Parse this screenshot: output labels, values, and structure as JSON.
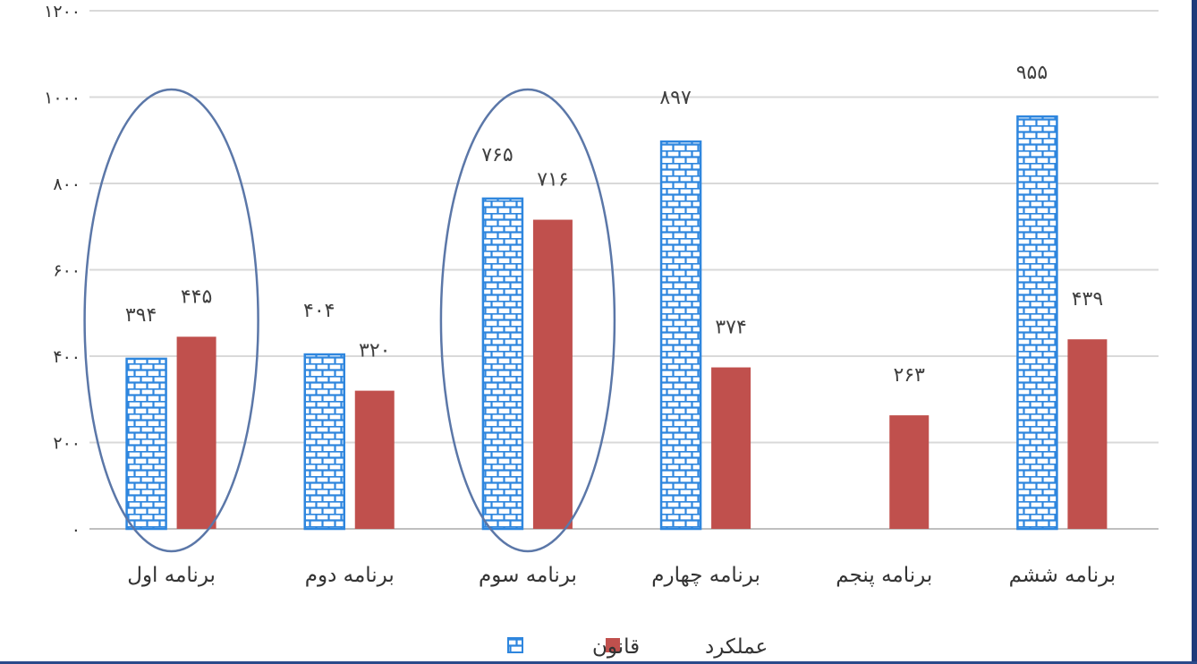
{
  "chart_data": {
    "type": "bar",
    "categories": [
      "برنامه اول",
      "برنامه دوم",
      "برنامه سوم",
      "برنامه چهارم",
      "برنامه پنجم",
      "برنامه ششم"
    ],
    "series": [
      {
        "name": "قانون",
        "values": [
          394,
          404,
          765,
          897,
          null,
          955
        ],
        "value_labels": [
          "۳۹۴",
          "۴۰۴",
          "۷۶۵",
          "۸۹۷",
          "",
          "۹۵۵"
        ],
        "color": "#2e86de",
        "pattern": "brick"
      },
      {
        "name": "عملکرد",
        "values": [
          445,
          320,
          716,
          374,
          263,
          439
        ],
        "value_labels": [
          "۴۴۵",
          "۳۲۰",
          "۷۱۶",
          "۳۷۴",
          "۲۶۳",
          "۴۳۹"
        ],
        "color": "#c0504d",
        "pattern": "solid"
      }
    ],
    "yticks": [
      0,
      200,
      400,
      600,
      800,
      1000,
      1200
    ],
    "ytick_labels": [
      "۰",
      "۲۰۰",
      "۴۰۰",
      "۶۰۰",
      "۸۰۰",
      "۱۰۰۰",
      "۱۲۰۰"
    ],
    "ylim": [
      0,
      1200
    ],
    "grid": true,
    "legend_position": "bottom-center",
    "highlighted_categories": [
      "برنامه اول",
      "برنامه سوم"
    ],
    "highlight_color": "#5b77a8"
  }
}
